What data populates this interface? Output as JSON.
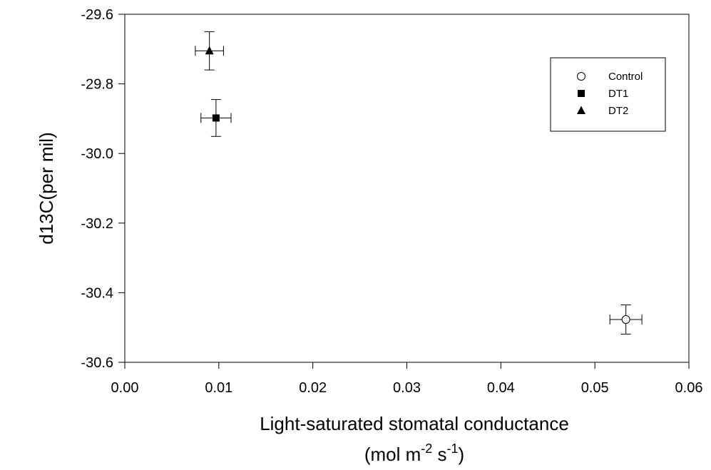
{
  "chart_data": {
    "type": "scatter",
    "xlabel": "Light-saturated stomatal conductance",
    "xlabel_units": {
      "open": "(mol m",
      "exp1": "-2",
      "mid": " s",
      "exp2": "-1",
      "close": ")"
    },
    "ylabel": "d13C(per mil)",
    "xlim": [
      0.0,
      0.06
    ],
    "ylim": [
      -30.6,
      -29.6
    ],
    "xticks": [
      "0.00",
      "0.01",
      "0.02",
      "0.03",
      "0.04",
      "0.05",
      "0.06"
    ],
    "yticks": [
      "-29.6",
      "-29.8",
      "-30.0",
      "-30.2",
      "-30.4",
      "-30.6"
    ],
    "grid": false,
    "legend_position": "top-right",
    "series": [
      {
        "name": "Control",
        "marker": "open-circle",
        "x": 0.0533,
        "y": -30.477,
        "xerr": 0.0017,
        "yerr": 0.042
      },
      {
        "name": "DT1",
        "marker": "filled-square",
        "x": 0.0097,
        "y": -29.898,
        "xerr": 0.0016,
        "yerr": 0.053
      },
      {
        "name": "DT2",
        "marker": "filled-triangle",
        "x": 0.009,
        "y": -29.705,
        "xerr": 0.0015,
        "yerr": 0.055
      }
    ]
  }
}
